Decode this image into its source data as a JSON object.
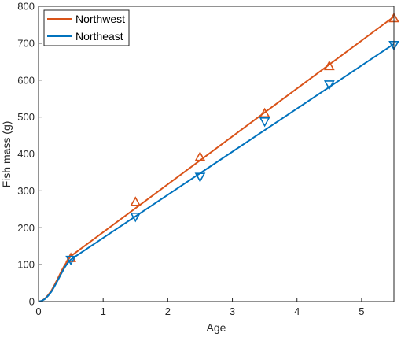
{
  "chart_data": {
    "type": "line",
    "title": "",
    "xlabel": "Age",
    "ylabel": "Fish mass (g)",
    "xlim": [
      0,
      5.5
    ],
    "ylim": [
      0,
      800
    ],
    "xticks": [
      0,
      1,
      2,
      3,
      4,
      5
    ],
    "yticks": [
      0,
      100,
      200,
      300,
      400,
      500,
      600,
      700,
      800
    ],
    "grid": false,
    "legend_position": "top-left",
    "series": [
      {
        "name": "Northwest",
        "color": "#d95319",
        "marker": "triangle-up",
        "curve": [
          [
            0,
            0
          ],
          [
            0.05,
            2
          ],
          [
            0.1,
            8
          ],
          [
            0.15,
            18
          ],
          [
            0.2,
            30
          ],
          [
            0.25,
            46
          ],
          [
            0.3,
            63
          ],
          [
            0.35,
            81
          ],
          [
            0.4,
            97
          ],
          [
            0.45,
            111
          ],
          [
            0.5,
            123
          ],
          [
            5.5,
            772
          ]
        ],
        "points": [
          [
            0.5,
            118
          ],
          [
            1.5,
            270
          ],
          [
            2.5,
            392
          ],
          [
            3.5,
            510
          ],
          [
            4.5,
            638
          ],
          [
            5.5,
            768
          ]
        ]
      },
      {
        "name": "Northeast",
        "color": "#0072bd",
        "marker": "triangle-down",
        "curve": [
          [
            0,
            0
          ],
          [
            0.05,
            2
          ],
          [
            0.1,
            7
          ],
          [
            0.15,
            16
          ],
          [
            0.2,
            27
          ],
          [
            0.25,
            42
          ],
          [
            0.3,
            58
          ],
          [
            0.35,
            75
          ],
          [
            0.4,
            91
          ],
          [
            0.45,
            104
          ],
          [
            0.5,
            114
          ],
          [
            5.5,
            698
          ]
        ],
        "points": [
          [
            0.5,
            113
          ],
          [
            1.5,
            230
          ],
          [
            2.5,
            338
          ],
          [
            3.5,
            488
          ],
          [
            4.5,
            588
          ],
          [
            5.5,
            695
          ]
        ]
      }
    ]
  }
}
